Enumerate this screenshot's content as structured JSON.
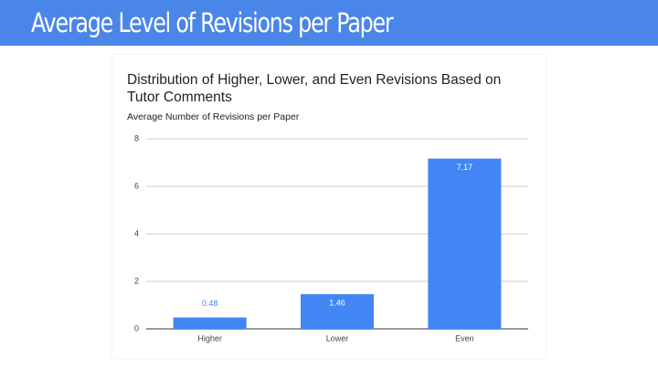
{
  "header": {
    "title": "Average Level of Revisions per Paper"
  },
  "chart_data": {
    "type": "bar",
    "title": "Distribution of Higher, Lower, and Even Revisions Based on Tutor Comments",
    "y_label": "Average Number of Revisions per Paper",
    "categories": [
      "Higher",
      "Lower",
      "Even"
    ],
    "values": [
      0.48,
      1.46,
      7.17
    ],
    "color": "#4285f4",
    "ylim": [
      0,
      8
    ],
    "yticks": [
      0,
      2,
      4,
      6,
      8
    ],
    "grid": true
  }
}
